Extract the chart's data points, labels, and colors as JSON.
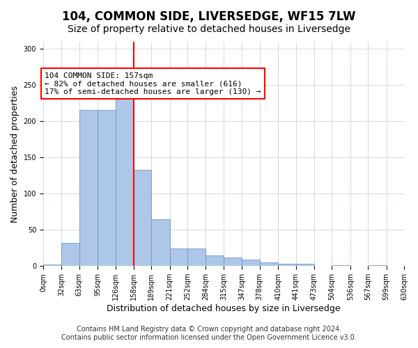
{
  "title": "104, COMMON SIDE, LIVERSEDGE, WF15 7LW",
  "subtitle": "Size of property relative to detached houses in Liversedge",
  "xlabel": "Distribution of detached houses by size in Liversedge",
  "ylabel": "Number of detached properties",
  "footer_line1": "Contains HM Land Registry data © Crown copyright and database right 2024.",
  "footer_line2": "Contains public sector information licensed under the Open Government Licence v3.0.",
  "bin_edges": [
    0,
    32,
    63,
    95,
    126,
    158,
    189,
    221,
    252,
    284,
    315,
    347,
    378,
    410,
    441,
    473,
    504,
    536,
    567,
    599,
    630
  ],
  "bar_heights": [
    2,
    32,
    216,
    216,
    244,
    133,
    65,
    24,
    24,
    15,
    12,
    9,
    5,
    3,
    3,
    0,
    1,
    0,
    1,
    0
  ],
  "bar_color": "#aec6e8",
  "bar_edge_color": "#5a8fc2",
  "red_line_x": 158,
  "annotation_text": "104 COMMON SIDE: 157sqm\n← 82% of detached houses are smaller (616)\n17% of semi-detached houses are larger (130) →",
  "annotation_box_color": "white",
  "annotation_box_edge_color": "red",
  "red_line_color": "red",
  "ylim": [
    0,
    310
  ],
  "yticks": [
    0,
    50,
    100,
    150,
    200,
    250,
    300
  ],
  "title_fontsize": 12,
  "subtitle_fontsize": 10,
  "xlabel_fontsize": 9,
  "ylabel_fontsize": 9,
  "tick_fontsize": 7,
  "annotation_fontsize": 8,
  "footer_fontsize": 7
}
